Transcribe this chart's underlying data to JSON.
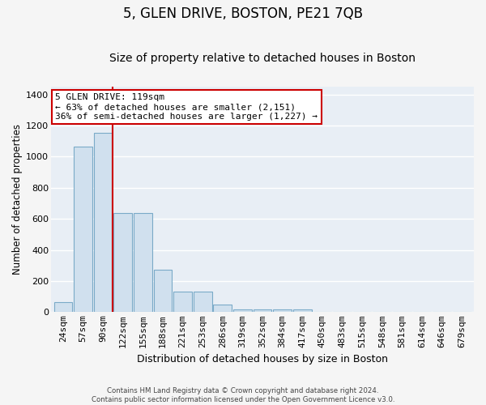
{
  "title": "5, GLEN DRIVE, BOSTON, PE21 7QB",
  "subtitle": "Size of property relative to detached houses in Boston",
  "xlabel": "Distribution of detached houses by size in Boston",
  "ylabel": "Number of detached properties",
  "categories": [
    "24sqm",
    "57sqm",
    "90sqm",
    "122sqm",
    "155sqm",
    "188sqm",
    "221sqm",
    "253sqm",
    "286sqm",
    "319sqm",
    "352sqm",
    "384sqm",
    "417sqm",
    "450sqm",
    "483sqm",
    "515sqm",
    "548sqm",
    "581sqm",
    "614sqm",
    "646sqm",
    "679sqm"
  ],
  "values": [
    65,
    1065,
    1155,
    635,
    635,
    275,
    130,
    130,
    48,
    20,
    20,
    20,
    20,
    0,
    0,
    0,
    0,
    0,
    0,
    0,
    0
  ],
  "bar_color": "#d0e0ee",
  "bar_edge_color": "#7aaac8",
  "vline_color": "#cc0000",
  "annotation_text": "5 GLEN DRIVE: 119sqm\n← 63% of detached houses are smaller (2,151)\n36% of semi-detached houses are larger (1,227) →",
  "annotation_box_facecolor": "#ffffff",
  "annotation_box_edgecolor": "#cc0000",
  "ylim": [
    0,
    1450
  ],
  "yticks": [
    0,
    200,
    400,
    600,
    800,
    1000,
    1200,
    1400
  ],
  "plot_bg_color": "#e8eef5",
  "fig_bg_color": "#f5f5f5",
  "grid_color": "#ffffff",
  "footer_line1": "Contains HM Land Registry data © Crown copyright and database right 2024.",
  "footer_line2": "Contains public sector information licensed under the Open Government Licence v3.0.",
  "title_fontsize": 12,
  "subtitle_fontsize": 10,
  "xlabel_fontsize": 9,
  "ylabel_fontsize": 8.5,
  "tick_fontsize": 8,
  "annot_fontsize": 8,
  "vline_x_data": 2.5
}
